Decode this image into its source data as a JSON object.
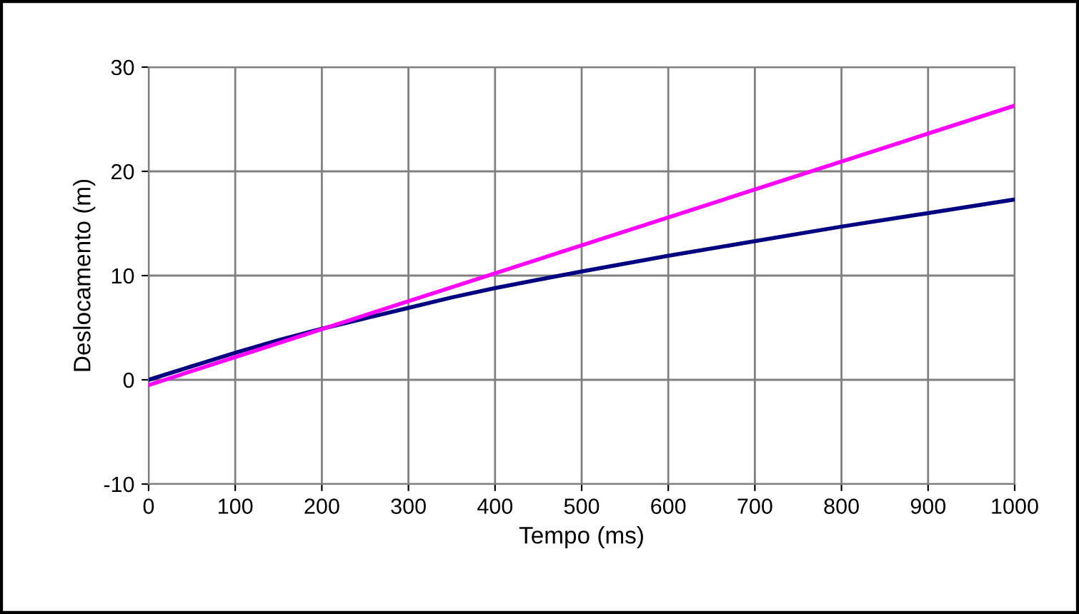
{
  "chart_data": {
    "type": "line",
    "xlabel": "Tempo (ms)",
    "ylabel": "Deslocamento (m)",
    "xlim": [
      0,
      1000
    ],
    "xticks": [
      0,
      100,
      200,
      300,
      400,
      500,
      600,
      700,
      800,
      900,
      1000
    ],
    "ylim": [
      -10,
      30
    ],
    "yticks": [
      -10,
      0,
      10,
      20,
      30
    ],
    "grid": true,
    "marker": "none",
    "line_style": "solid",
    "series": [
      {
        "color": "#000080",
        "x": [
          0,
          50,
          100,
          150,
          200,
          250,
          300,
          350,
          400,
          450,
          500,
          600,
          700,
          800,
          900,
          1000
        ],
        "values": [
          0,
          1.3,
          2.6,
          3.8,
          4.9,
          5.9,
          6.9,
          7.9,
          8.8,
          9.6,
          10.4,
          11.9,
          13.3,
          14.7,
          16.0,
          17.3
        ]
      },
      {
        "color": "#ff00ff",
        "x": [
          0,
          1000
        ],
        "values": [
          -0.5,
          26.3
        ]
      }
    ]
  }
}
